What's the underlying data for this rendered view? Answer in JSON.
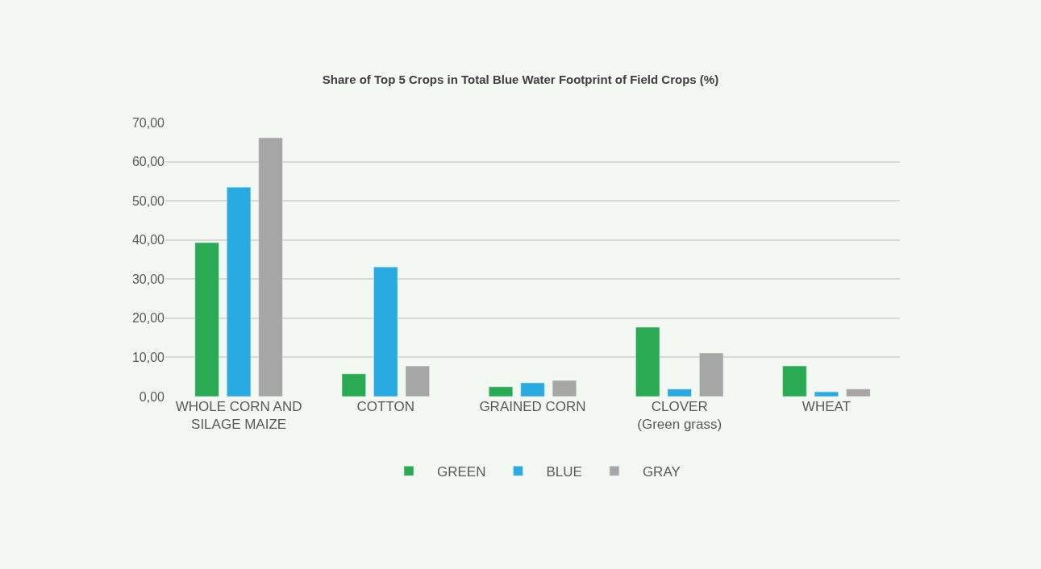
{
  "chart_data": {
    "type": "bar",
    "title": "Share of Top 5 Crops in Total Blue Water Footprint of Field Crops (%)",
    "categories": [
      "WHOLE CORN AND\nSILAGE MAIZE",
      "COTTON",
      "GRAINED CORN",
      "CLOVER\n(Green grass)",
      "WHEAT"
    ],
    "series": [
      {
        "name": "GREEN",
        "color": "#2aaa52",
        "values": [
          39.3,
          5.8,
          2.5,
          17.7,
          7.8
        ]
      },
      {
        "name": "BLUE",
        "color": "#29abe2",
        "values": [
          53.5,
          33.1,
          3.5,
          1.9,
          1.2
        ]
      },
      {
        "name": "GRAY",
        "color": "#a6a6a6",
        "values": [
          66.1,
          7.8,
          4.1,
          11.1,
          1.9
        ]
      }
    ],
    "ylim": [
      0,
      70
    ],
    "yticks": [
      {
        "value": 0,
        "label": "0,00"
      },
      {
        "value": 10,
        "label": "10,00"
      },
      {
        "value": 20,
        "label": "20,00"
      },
      {
        "value": 30,
        "label": "30,00"
      },
      {
        "value": 40,
        "label": "40,00"
      },
      {
        "value": 50,
        "label": "50,00"
      },
      {
        "value": 60,
        "label": "60,00"
      },
      {
        "value": 70,
        "label": "70,00"
      }
    ],
    "grid": "y",
    "legend": "bottom"
  }
}
